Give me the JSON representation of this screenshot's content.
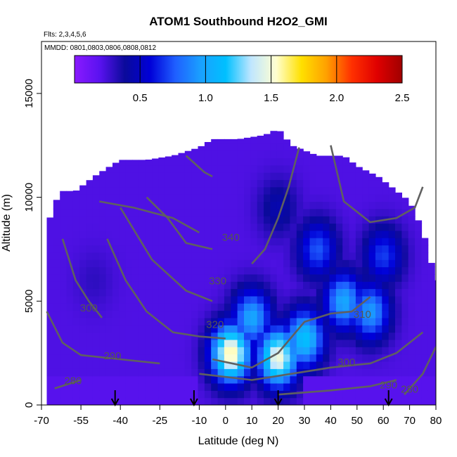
{
  "chart_data": {
    "type": "heatmap",
    "title": "ATOM1 Southbound H2O2_GMI",
    "flights_note": "Flts: 2,3,4,5,6",
    "dates_note": "MMDD: 0801,0803,0806,0808,0812",
    "xlabel": "Latitude (deg N)",
    "ylabel": "Altitude (m)",
    "xlim": [
      -70,
      80
    ],
    "ylim": [
      0,
      17500
    ],
    "x_ticks": [
      -70,
      -55,
      -40,
      -25,
      -10,
      0,
      10,
      20,
      30,
      40,
      50,
      60,
      70,
      80
    ],
    "y_ticks": [
      0,
      5000,
      10000,
      15000
    ],
    "colorbar": {
      "min": 0,
      "max": 2.5,
      "ticks": [
        0.5,
        1.0,
        1.5,
        2.0,
        2.5
      ],
      "tick_labels": [
        "0.5",
        "1.0",
        "1.5",
        "2.0",
        "2.5"
      ],
      "colors": [
        "#8a1aff",
        "#5a12f0",
        "#0a0a9a",
        "#0000d8",
        "#1f5fff",
        "#1aa0ff",
        "#00c0ff",
        "#bfe6ff",
        "#ffffd0",
        "#ffe000",
        "#ffa000",
        "#ff3000",
        "#e00000",
        "#a00000"
      ]
    },
    "data_extent": {
      "x_edges": [
        -68,
        -63,
        -57,
        -50,
        -40,
        -30,
        -20,
        -10,
        -5,
        5,
        15,
        20,
        25,
        35,
        45,
        50,
        58,
        65,
        70,
        75,
        80
      ],
      "top_altitude": [
        8600,
        10300,
        10300,
        11000,
        11800,
        11800,
        12000,
        12400,
        12800,
        12800,
        13000,
        13300,
        12500,
        12000,
        12000,
        11500,
        11000,
        10300,
        9800,
        8400,
        6000
      ]
    },
    "hotspots": [
      {
        "lat": 2,
        "alt": 2500,
        "value": 1.6
      },
      {
        "lat": 20,
        "alt": 2300,
        "value": 1.5
      },
      {
        "lat": 30,
        "alt": 3200,
        "value": 1.15
      },
      {
        "lat": 10,
        "alt": 4200,
        "value": 1.0
      },
      {
        "lat": 45,
        "alt": 5000,
        "value": 1.0
      },
      {
        "lat": 55,
        "alt": 4500,
        "value": 0.95
      },
      {
        "lat": 35,
        "alt": 7500,
        "value": 0.75
      },
      {
        "lat": 60,
        "alt": 7200,
        "value": 0.7
      },
      {
        "lat": 20,
        "alt": 9500,
        "value": 0.45
      },
      {
        "lat": -50,
        "alt": 6000,
        "value": 0.3
      }
    ],
    "theta_contours": [
      {
        "label": "280",
        "points": [
          [
            -65,
            800
          ],
          [
            -60,
            1000
          ],
          [
            -55,
            1200
          ]
        ],
        "label_at": [
          -58,
          1000
        ]
      },
      {
        "label": "290",
        "points": [
          [
            -68,
            4500
          ],
          [
            -62,
            3000
          ],
          [
            -55,
            2400
          ],
          [
            -40,
            2200
          ],
          [
            -25,
            2000
          ]
        ],
        "label_at": [
          -43,
          2200
        ]
      },
      {
        "label": "300",
        "points": [
          [
            -62,
            8000
          ],
          [
            -57,
            6000
          ],
          [
            -52,
            5000
          ],
          [
            -47,
            4200
          ]
        ],
        "label_at": [
          -52,
          4500
        ]
      },
      {
        "label": "320",
        "points": [
          [
            -45,
            8000
          ],
          [
            -38,
            6000
          ],
          [
            -30,
            4500
          ],
          [
            -20,
            3500
          ],
          [
            -10,
            3300
          ],
          [
            0,
            3200
          ]
        ],
        "label_at": [
          -4,
          3700
        ]
      },
      {
        "label": "330",
        "points": [
          [
            -40,
            9500
          ],
          [
            -28,
            7000
          ],
          [
            -15,
            5500
          ],
          [
            -5,
            5000
          ]
        ],
        "label_at": [
          -3,
          5800
        ]
      },
      {
        "label": "340",
        "points": [
          [
            -48,
            9800
          ],
          [
            -35,
            9500
          ],
          [
            -20,
            9000
          ],
          [
            -10,
            8300
          ]
        ],
        "label_at": [
          2,
          7900
        ]
      },
      {
        "label": "310",
        "points": [
          [
            -5,
            2200
          ],
          [
            10,
            1800
          ],
          [
            20,
            2500
          ],
          [
            30,
            4000
          ],
          [
            40,
            4400
          ],
          [
            48,
            4500
          ],
          [
            55,
            5200
          ]
        ],
        "label_at": [
          52,
          4200
        ]
      },
      {
        "label": "300",
        "points": [
          [
            -10,
            1500
          ],
          [
            10,
            1200
          ],
          [
            25,
            1500
          ],
          [
            40,
            1800
          ],
          [
            55,
            2000
          ],
          [
            65,
            2500
          ],
          [
            75,
            3500
          ]
        ],
        "label_at": [
          46,
          1900
        ]
      },
      {
        "label": "290",
        "points": [
          [
            20,
            500
          ],
          [
            40,
            700
          ],
          [
            55,
            900
          ],
          [
            65,
            1200
          ]
        ],
        "label_at": [
          62,
          800
        ]
      },
      {
        "label": "280",
        "points": [
          [
            68,
            500
          ],
          [
            75,
            1500
          ],
          [
            80,
            2800
          ]
        ],
        "label_at": [
          70,
          600
        ]
      },
      {
        "label": "",
        "points": [
          [
            -15,
            12000
          ],
          [
            -8,
            11200
          ],
          [
            -5,
            11000
          ]
        ],
        "label_at": null
      },
      {
        "label": "",
        "points": [
          [
            28,
            12400
          ],
          [
            24,
            10500
          ],
          [
            20,
            9000
          ],
          [
            15,
            7500
          ],
          [
            10,
            6800
          ]
        ],
        "label_at": null
      },
      {
        "label": "",
        "points": [
          [
            40,
            12500
          ],
          [
            45,
            9800
          ],
          [
            55,
            8800
          ],
          [
            65,
            9000
          ],
          [
            72,
            9500
          ],
          [
            75,
            10500
          ]
        ],
        "label_at": null
      },
      {
        "label": "",
        "points": [
          [
            -30,
            10000
          ],
          [
            -22,
            9000
          ],
          [
            -15,
            7800
          ],
          [
            -5,
            7500
          ]
        ],
        "label_at": null
      }
    ],
    "arrows_lat": [
      -42,
      -12,
      20,
      62
    ]
  }
}
